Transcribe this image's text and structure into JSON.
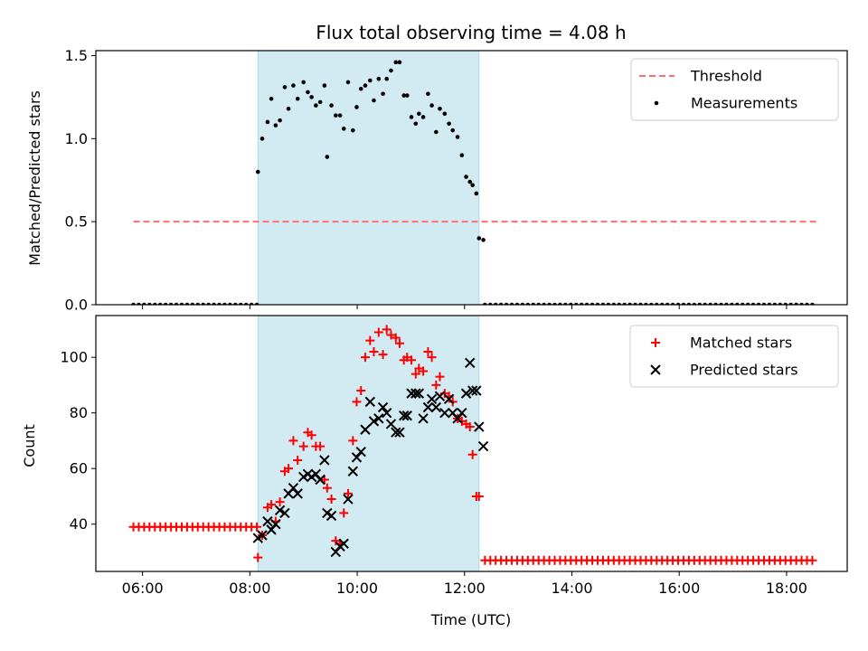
{
  "title": "Flux total observing time = 4.08 h",
  "chart_data": [
    {
      "type": "scatter",
      "ylabel": "Matched/Predicted stars",
      "xlim": [
        5.13,
        19.13
      ],
      "ylim": [
        0,
        1.53
      ],
      "yticks": [
        0.0,
        0.5,
        1.0,
        1.5
      ],
      "ytick_labels": [
        "0.0",
        "0.5",
        "1.0",
        "1.5"
      ],
      "shaded_interval": [
        8.15,
        12.27
      ],
      "shaded_color": "#add8e6",
      "legend_position": "top-right",
      "threshold": {
        "name": "Threshold",
        "y": 0.5,
        "x_range": [
          5.83,
          18.56
        ],
        "color": "#ff6f6f",
        "style": "dashed"
      },
      "series": [
        {
          "name": "Measurements",
          "color": "#000000",
          "marker": "dot",
          "x": [
            8.15,
            8.23,
            8.33,
            8.4,
            8.48,
            8.56,
            8.65,
            8.72,
            8.81,
            8.89,
            9.0,
            9.08,
            9.15,
            9.23,
            9.31,
            9.39,
            9.44,
            9.52,
            9.6,
            9.68,
            9.75,
            9.83,
            9.92,
            9.99,
            10.07,
            10.15,
            10.24,
            10.31,
            10.4,
            10.48,
            10.55,
            10.63,
            10.72,
            10.79,
            10.87,
            10.93,
            11.01,
            11.09,
            11.15,
            11.23,
            11.32,
            11.39,
            11.47,
            11.54,
            11.63,
            11.71,
            11.78,
            11.87,
            11.95,
            12.03,
            12.1,
            12.15,
            12.22,
            12.27,
            12.35
          ],
          "y": [
            0.8,
            1.0,
            1.1,
            1.24,
            1.08,
            1.11,
            1.31,
            1.18,
            1.32,
            1.24,
            1.34,
            1.28,
            1.25,
            1.2,
            1.22,
            1.32,
            0.89,
            1.2,
            1.14,
            1.14,
            1.06,
            1.34,
            1.05,
            1.19,
            1.3,
            1.32,
            1.35,
            1.23,
            1.36,
            1.27,
            1.36,
            1.41,
            1.46,
            1.46,
            1.26,
            1.26,
            1.13,
            1.09,
            1.15,
            1.13,
            1.27,
            1.2,
            1.04,
            1.18,
            1.15,
            1.09,
            1.05,
            1.01,
            0.9,
            0.77,
            0.74,
            0.72,
            0.67,
            0.4,
            0.39
          ]
        }
      ]
    },
    {
      "type": "scatter",
      "ylabel": "Count",
      "xlabel": "Time (UTC)",
      "xlim": [
        5.13,
        19.13
      ],
      "ylim": [
        23,
        115
      ],
      "xticks": [
        6,
        8,
        10,
        12,
        14,
        16,
        18
      ],
      "xtick_labels": [
        "06:00",
        "08:00",
        "10:00",
        "12:00",
        "14:00",
        "16:00",
        "18:00"
      ],
      "yticks": [
        40,
        60,
        80,
        100
      ],
      "ytick_labels": [
        "40",
        "60",
        "80",
        "100"
      ],
      "shaded_interval": [
        8.15,
        12.27
      ],
      "shaded_color": "#add8e6",
      "legend_position": "top-right",
      "series": [
        {
          "name": "Matched stars",
          "color": "#ff0000",
          "marker": "plus",
          "x": [
            8.15,
            8.23,
            8.33,
            8.4,
            8.48,
            8.56,
            8.65,
            8.72,
            8.81,
            8.89,
            9.0,
            9.08,
            9.15,
            9.23,
            9.31,
            9.39,
            9.44,
            9.52,
            9.6,
            9.68,
            9.75,
            9.83,
            9.92,
            9.99,
            10.07,
            10.15,
            10.24,
            10.31,
            10.4,
            10.48,
            10.55,
            10.63,
            10.72,
            10.79,
            10.87,
            10.93,
            11.01,
            11.09,
            11.15,
            11.23,
            11.32,
            11.39,
            11.47,
            11.54,
            11.63,
            11.71,
            11.78,
            11.87,
            11.95,
            12.03,
            12.1,
            12.15,
            12.22,
            12.27
          ],
          "y": [
            28,
            36,
            46,
            47,
            41,
            48,
            59,
            60,
            70,
            63,
            68,
            73,
            72,
            68,
            68,
            56,
            53,
            49,
            34,
            33,
            44,
            51,
            70,
            84,
            88,
            100,
            106,
            102,
            109,
            101,
            110,
            108,
            107,
            105,
            99,
            100,
            99,
            94,
            96,
            95,
            102,
            100,
            90,
            93,
            87,
            86,
            84,
            78,
            77,
            76,
            75,
            65,
            50,
            50
          ]
        },
        {
          "name": "Predicted stars",
          "color": "#000000",
          "marker": "x",
          "x": [
            8.15,
            8.23,
            8.33,
            8.4,
            8.48,
            8.56,
            8.65,
            8.72,
            8.81,
            8.89,
            9.0,
            9.08,
            9.15,
            9.23,
            9.31,
            9.39,
            9.44,
            9.52,
            9.6,
            9.68,
            9.75,
            9.83,
            9.92,
            9.99,
            10.07,
            10.15,
            10.24,
            10.31,
            10.4,
            10.48,
            10.55,
            10.63,
            10.72,
            10.79,
            10.87,
            10.93,
            11.01,
            11.09,
            11.15,
            11.23,
            11.32,
            11.39,
            11.47,
            11.54,
            11.63,
            11.71,
            11.78,
            11.87,
            11.95,
            12.03,
            12.1,
            12.15,
            12.22,
            12.27,
            12.35
          ],
          "y": [
            35,
            36,
            41,
            38,
            40,
            45,
            44,
            51,
            53,
            51,
            57,
            58,
            57,
            58,
            56,
            63,
            44,
            43,
            30,
            32,
            33,
            49,
            59,
            64,
            66,
            74,
            84,
            77,
            78,
            82,
            80,
            76,
            73,
            73,
            79,
            79,
            87,
            87,
            87,
            78,
            82,
            85,
            82,
            86,
            80,
            85,
            80,
            78,
            80,
            87,
            98,
            88,
            88,
            75,
            68
          ]
        }
      ]
    }
  ]
}
